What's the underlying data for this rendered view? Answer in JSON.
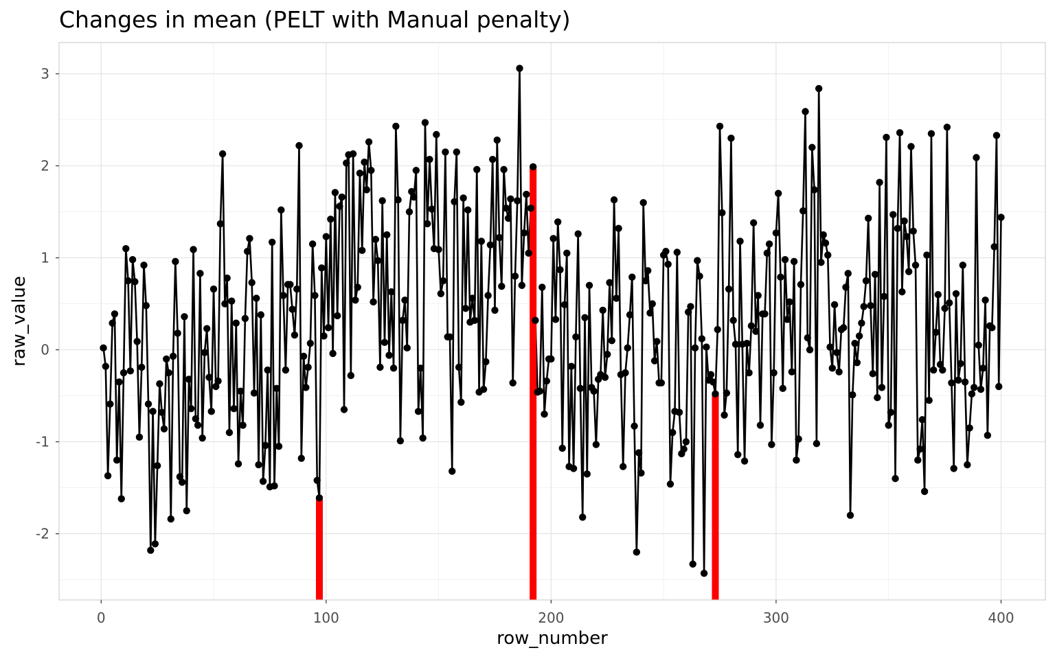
{
  "chart_data": {
    "type": "line",
    "title": "Changes in mean (PELT with Manual penalty)",
    "xlabel": "row_number",
    "ylabel": "raw_value",
    "xlim": [
      -18.7,
      419.7
    ],
    "ylim": [
      -2.72,
      3.34
    ],
    "x_ticks": [
      "0",
      "100",
      "200",
      "300",
      "400"
    ],
    "x_tick_values": [
      0,
      100,
      200,
      300,
      400
    ],
    "y_ticks": [
      "-2",
      "-1",
      "0",
      "1",
      "2",
      "3"
    ],
    "y_tick_values": [
      -2,
      -1,
      0,
      1,
      2,
      3
    ],
    "grid": true,
    "line_color": "#000000",
    "point_color": "#000000",
    "changepoint_color": "#ff0000",
    "changepoints": [
      {
        "x": 97,
        "y": -1.61
      },
      {
        "x": 192,
        "y": 1.99
      },
      {
        "x": 273,
        "y": -0.48
      }
    ],
    "series": [
      {
        "values": [
          0.02,
          -0.18,
          -1.37,
          -0.59,
          0.29,
          0.39,
          -1.2,
          -0.35,
          -1.62,
          -0.25,
          1.1,
          0.75,
          -0.23,
          0.98,
          0.74,
          0.09,
          -0.95,
          -0.19,
          0.92,
          0.48,
          -0.59,
          -2.18,
          -0.67,
          -2.11,
          -1.26,
          -0.37,
          -0.68,
          -0.86,
          -0.1,
          -0.25,
          -1.84,
          -0.07,
          0.96,
          0.18,
          -1.38,
          -1.44,
          0.36,
          -1.75,
          -0.32,
          -0.64,
          1.09,
          -0.75,
          -0.82,
          0.83,
          -0.96,
          -0.03,
          0.23,
          -0.3,
          -0.67,
          0.66,
          -0.4,
          -0.34,
          1.37,
          2.13,
          0.5,
          0.78,
          -0.9,
          0.53,
          -0.64,
          0.29,
          -1.24,
          -0.45,
          -0.82,
          0.34,
          1.07,
          1.21,
          0.73,
          -0.47,
          0.56,
          -1.25,
          0.38,
          -1.43,
          -1.04,
          -0.22,
          -1.49,
          1.17,
          -1.48,
          -0.42,
          -1.05,
          1.52,
          0.59,
          -0.22,
          0.71,
          0.71,
          0.44,
          0.16,
          0.66,
          2.22,
          -1.18,
          -0.07,
          -0.41,
          -0.19,
          0.07,
          1.15,
          0.59,
          -1.42,
          -1.61,
          0.89,
          0.15,
          1.23,
          0.24,
          1.42,
          -0.04,
          1.71,
          0.37,
          1.56,
          1.66,
          -0.65,
          2.03,
          2.12,
          -0.28,
          2.13,
          0.54,
          0.68,
          1.92,
          1.08,
          2.04,
          1.74,
          2.26,
          1.95,
          0.52,
          1.2,
          0.97,
          -0.19,
          1.62,
          0.08,
          1.25,
          -0.06,
          0.63,
          -0.2,
          2.43,
          1.63,
          -0.99,
          0.32,
          0.54,
          0.02,
          1.5,
          1.72,
          1.66,
          1.95,
          -0.67,
          -0.2,
          -0.96,
          2.47,
          1.37,
          2.07,
          1.53,
          1.1,
          2.34,
          1.09,
          0.61,
          0.75,
          2.15,
          0.14,
          0.14,
          -1.32,
          1.61,
          2.15,
          -0.19,
          -0.57,
          1.65,
          0.45,
          1.52,
          0.3,
          0.56,
          0.32,
          1.96,
          -0.46,
          1.18,
          -0.43,
          -0.13,
          0.59,
          1.14,
          2.07,
          0.43,
          2.28,
          1.22,
          0.69,
          1.96,
          1.54,
          1.43,
          1.64,
          -0.36,
          0.8,
          1.62,
          3.06,
          0.7,
          1.27,
          1.69,
          1.05,
          1.54,
          1.99,
          0.32,
          -0.46,
          -0.45,
          0.68,
          -0.7,
          -0.34,
          -0.1,
          -0.1,
          1.21,
          0.33,
          1.39,
          0.87,
          -1.07,
          0.49,
          1.05,
          -1.27,
          -0.18,
          -1.29,
          0.14,
          1.26,
          -0.42,
          -1.82,
          0.35,
          -1.35,
          0.7,
          -0.41,
          -0.45,
          -1.03,
          -0.32,
          -0.27,
          0.43,
          -0.3,
          -0.05,
          0.73,
          0.1,
          1.63,
          0.56,
          1.32,
          -0.27,
          -1.27,
          -0.25,
          0.02,
          0.38,
          0.79,
          -0.83,
          -2.2,
          -1.12,
          -1.34,
          1.6,
          0.75,
          0.86,
          0.4,
          0.5,
          -0.12,
          0.09,
          -0.36,
          -0.36,
          1.03,
          1.07,
          0.93,
          -1.46,
          -0.9,
          -0.67,
          1.06,
          -0.68,
          -1.13,
          -1.08,
          -1.0,
          0.41,
          0.47,
          -2.33,
          0.02,
          0.97,
          0.8,
          0.12,
          -2.43,
          0.03,
          -0.33,
          -0.27,
          -0.35,
          -0.48,
          0.22,
          2.43,
          1.49,
          -0.71,
          -0.47,
          0.66,
          2.3,
          0.32,
          0.06,
          -1.14,
          1.18,
          0.06,
          -1.21,
          0.07,
          -0.25,
          0.26,
          1.38,
          0.2,
          0.59,
          -0.82,
          0.39,
          0.39,
          1.05,
          1.15,
          -1.03,
          -0.25,
          1.27,
          1.7,
          0.79,
          -0.42,
          0.98,
          0.33,
          0.52,
          -0.24,
          0.96,
          -1.2,
          -0.97,
          0.71,
          1.51,
          2.59,
          0.13,
          0.0,
          2.2,
          1.74,
          -1.02,
          2.84,
          0.95,
          1.25,
          1.16,
          1.03,
          0.03,
          -0.2,
          0.49,
          -0.03,
          -0.24,
          0.22,
          0.24,
          0.68,
          0.83,
          -1.8,
          -0.49,
          0.07,
          -0.14,
          0.15,
          0.29,
          0.47,
          0.75,
          1.43,
          0.48,
          -0.26,
          0.82,
          -0.52,
          1.82,
          -0.41,
          0.58,
          2.31,
          -0.82,
          -0.68,
          1.47,
          -1.4,
          1.32,
          2.36,
          0.63,
          1.4,
          1.23,
          0.85,
          2.21,
          1.29,
          0.92,
          -1.2,
          -1.08,
          -0.76,
          -1.54,
          1.03,
          -0.55,
          2.35,
          -0.22,
          0.19,
          0.6,
          -0.16,
          -0.22,
          0.45,
          2.42,
          0.51,
          -0.36,
          -1.29,
          0.61,
          -0.33,
          -0.15,
          0.92,
          -0.35,
          -1.25,
          -0.85,
          -0.48,
          -0.41,
          2.09,
          0.05,
          -0.43,
          -0.2,
          0.54,
          -0.93,
          0.26,
          0.24,
          1.12,
          2.33,
          -0.4,
          1.44
        ]
      }
    ]
  }
}
